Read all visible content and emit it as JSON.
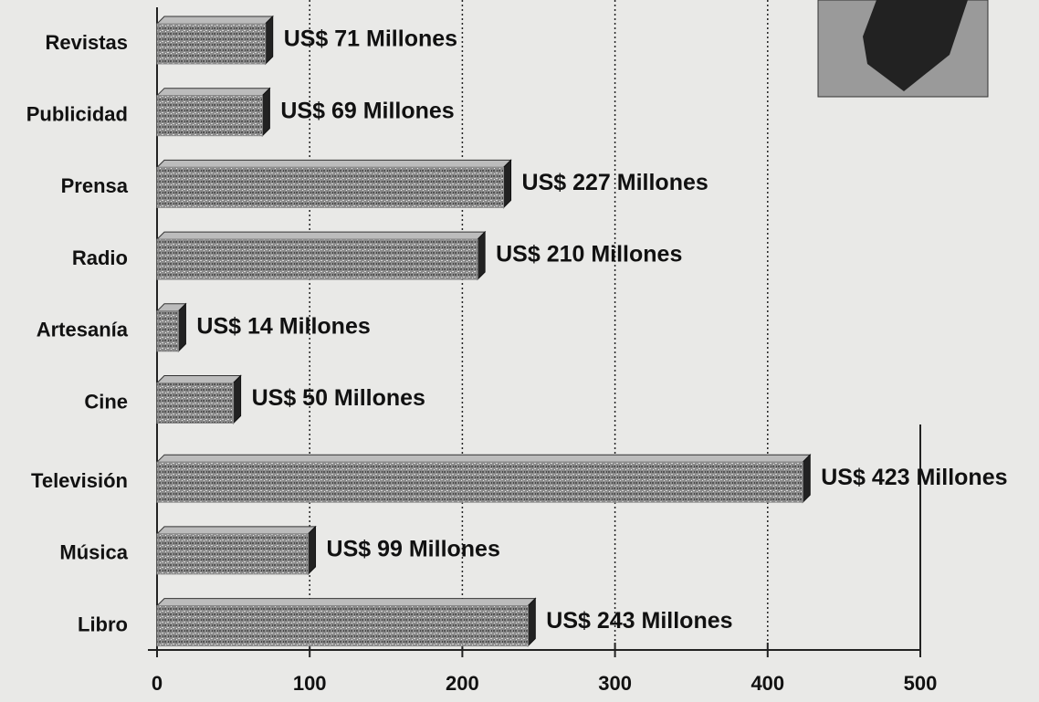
{
  "chart_data": {
    "type": "hbar",
    "categories": [
      "Revistas",
      "Publicidad",
      "Prensa",
      "Radio",
      "Artesanía",
      "Cine",
      "Televisión",
      "Música",
      "Libro"
    ],
    "values": [
      71,
      69,
      227,
      210,
      14,
      50,
      423,
      99,
      243
    ],
    "value_labels": [
      "US$ 71 Millones",
      "US$ 69 Millones",
      "US$ 227 Millones",
      "US$ 210 Millones",
      "US$ 14 Millones",
      "US$ 50 Millones",
      "US$ 423 Millones",
      "US$ 99 Millones",
      "US$ 243 Millones"
    ],
    "color": "#8c8c8c",
    "xlim": [
      0,
      500
    ],
    "xticks": [
      0,
      100,
      200,
      300,
      400,
      500
    ],
    "grid": true
  }
}
